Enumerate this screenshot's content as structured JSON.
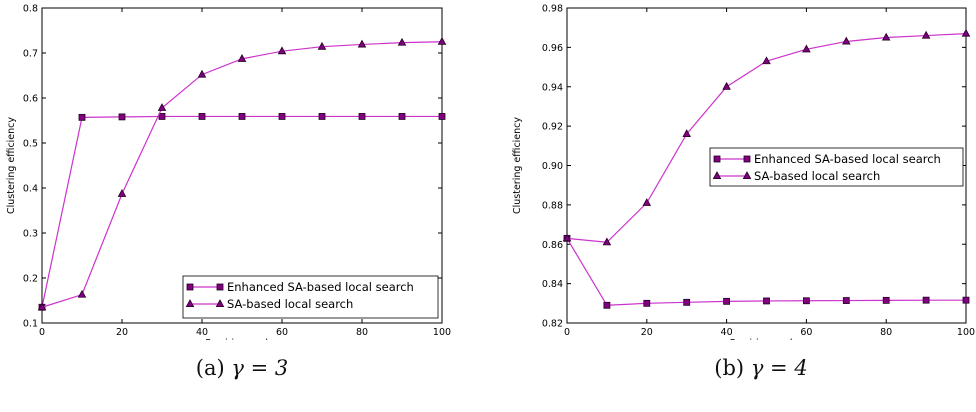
{
  "chart_data": [
    {
      "type": "line",
      "caption_label": "(a)",
      "caption_param": "γ = 3",
      "xlabel": "Rewiring cycles",
      "ylabel": "Clustering efficiency",
      "xlim": [
        0,
        100
      ],
      "ylim": [
        0.1,
        0.8
      ],
      "xticks": [
        "0",
        "20",
        "40",
        "60",
        "80",
        "100"
      ],
      "yticks": [
        "0.1",
        "0.2",
        "0.3",
        "0.4",
        "0.5",
        "0.6",
        "0.7",
        "0.8"
      ],
      "grid": false,
      "legend_position": "lower-right",
      "x": [
        0,
        10,
        20,
        30,
        40,
        50,
        60,
        70,
        80,
        90,
        100
      ],
      "series": [
        {
          "name": "Enhanced SA-based local search",
          "marker": "square",
          "values": [
            0.135,
            0.557,
            0.558,
            0.559,
            0.559,
            0.559,
            0.559,
            0.559,
            0.559,
            0.559,
            0.559
          ]
        },
        {
          "name": "SA-based local search",
          "marker": "triangle",
          "values": [
            0.135,
            0.163,
            0.387,
            0.578,
            0.652,
            0.687,
            0.704,
            0.714,
            0.719,
            0.723,
            0.725
          ]
        }
      ]
    },
    {
      "type": "line",
      "caption_label": "(b)",
      "caption_param": "γ = 4",
      "xlabel": "Rewiring cycles",
      "ylabel": "Clustering efficiency",
      "xlim": [
        0,
        100
      ],
      "ylim": [
        0.82,
        0.98
      ],
      "xticks": [
        "0",
        "20",
        "40",
        "60",
        "80",
        "100"
      ],
      "yticks": [
        "0.82",
        "0.84",
        "0.86",
        "0.88",
        "0.90",
        "0.92",
        "0.94",
        "0.96",
        "0.98"
      ],
      "grid": false,
      "legend_position": "center-right",
      "x": [
        0,
        10,
        20,
        30,
        40,
        50,
        60,
        70,
        80,
        90,
        100
      ],
      "series": [
        {
          "name": "Enhanced SA-based local search",
          "marker": "square",
          "values": [
            0.863,
            0.829,
            0.83,
            0.8305,
            0.831,
            0.8312,
            0.8313,
            0.8314,
            0.8315,
            0.8316,
            0.8316
          ]
        },
        {
          "name": "SA-based local search",
          "marker": "triangle",
          "values": [
            0.863,
            0.861,
            0.881,
            0.916,
            0.94,
            0.953,
            0.959,
            0.963,
            0.965,
            0.966,
            0.967
          ]
        }
      ]
    }
  ],
  "colors": {
    "line": "#cc33cc",
    "marker_fill": "#800080",
    "marker_edge": "#220022",
    "axis": "#000000"
  }
}
